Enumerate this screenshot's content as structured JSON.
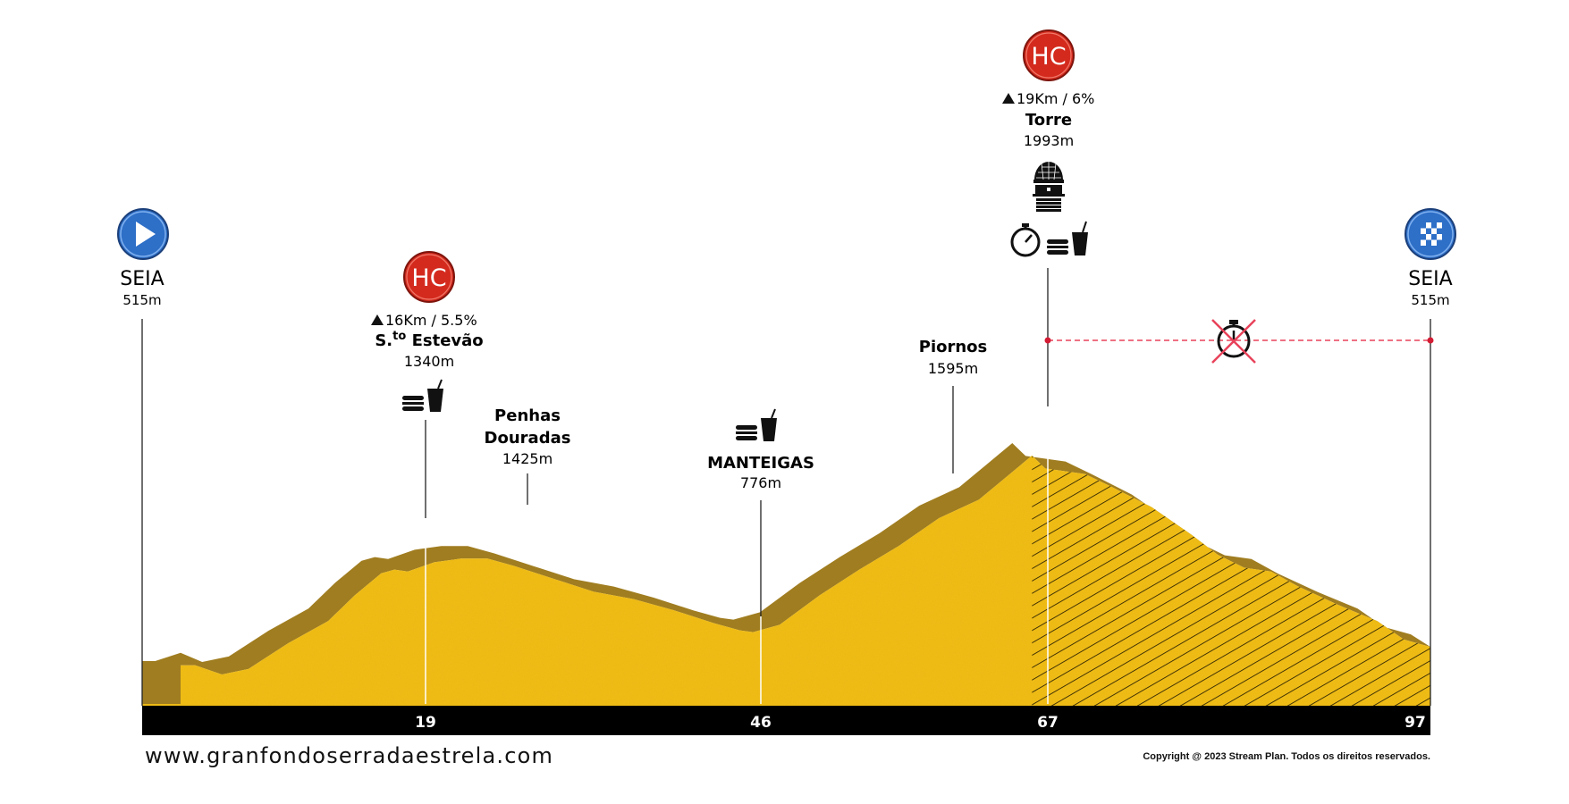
{
  "profile": {
    "distance_km_total": 97,
    "elevation_points": [
      [
        0,
        520
      ],
      [
        4,
        520
      ],
      [
        6,
        470
      ],
      [
        8,
        500
      ],
      [
        11,
        640
      ],
      [
        14,
        760
      ],
      [
        16,
        900
      ],
      [
        18,
        1020
      ],
      [
        19,
        1040
      ],
      [
        20,
        1030
      ],
      [
        22,
        1080
      ],
      [
        24,
        1100
      ],
      [
        26,
        1100
      ],
      [
        28,
        1060
      ],
      [
        31,
        990
      ],
      [
        34,
        920
      ],
      [
        37,
        880
      ],
      [
        40,
        820
      ],
      [
        43,
        750
      ],
      [
        45,
        710
      ],
      [
        46,
        700
      ],
      [
        48,
        740
      ],
      [
        51,
        900
      ],
      [
        54,
        1040
      ],
      [
        57,
        1170
      ],
      [
        60,
        1320
      ],
      [
        63,
        1420
      ],
      [
        65,
        1540
      ],
      [
        67,
        1660
      ],
      [
        68,
        1590
      ],
      [
        71,
        1560
      ],
      [
        73,
        1490
      ],
      [
        76,
        1380
      ],
      [
        79,
        1230
      ],
      [
        81,
        1120
      ],
      [
        83,
        1050
      ],
      [
        85,
        1030
      ],
      [
        87,
        950
      ],
      [
        90,
        850
      ],
      [
        93,
        760
      ],
      [
        95,
        660
      ],
      [
        97,
        620
      ]
    ],
    "colors": {
      "terrain": "#f2bc17",
      "shadow": "#a07d20",
      "bar": "#000000"
    }
  },
  "start": {
    "name": "SEIA",
    "alt": "515m",
    "icon": "play-icon"
  },
  "finish": {
    "name": "SEIA",
    "alt": "515m",
    "icon": "checkered-flag-icon"
  },
  "km_markers": [
    "19",
    "46",
    "67",
    "97"
  ],
  "climbs": [
    {
      "badge": "HC",
      "stats": "16Km / 5.5%",
      "name_prefix": "S.",
      "name_sup": "to",
      "name_rest": " Estevão",
      "alt": "1340m"
    },
    {
      "badge": "HC",
      "stats": "19Km / 6%",
      "name": "Torre",
      "alt": "1993m"
    }
  ],
  "waypoints": [
    {
      "name_line1": "Penhas",
      "name_line2": "Douradas",
      "alt": "1425m"
    },
    {
      "name": "MANTEIGAS",
      "alt": "776m"
    },
    {
      "name": "Piornos",
      "alt": "1595m"
    }
  ],
  "icons": {
    "feed": "food-drink-icon",
    "timer": "stopwatch-icon",
    "no_timer": "no-timing-icon",
    "landmark": "observatory-tower-icon"
  },
  "badge_color": "#d42a1e",
  "endpoint_color": "#2e6fc7",
  "footer": {
    "url": "www.granfondoserradaestrela.com",
    "copyright": "Copyright @ 2023 Stream Plan. Todos os direitos reservados."
  }
}
